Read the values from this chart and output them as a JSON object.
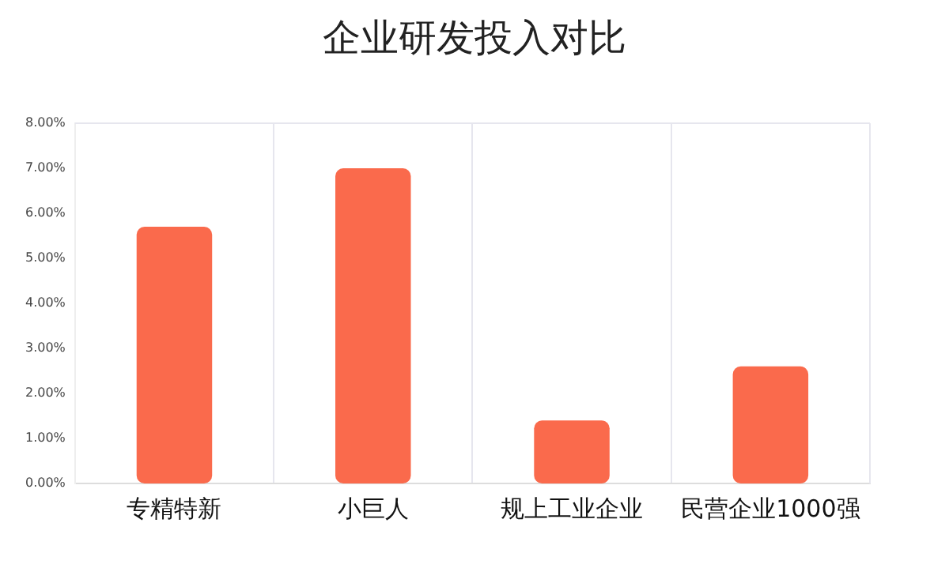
{
  "chart_data": {
    "type": "bar",
    "title": "企业研发投入对比",
    "categories": [
      "专精特新",
      "小巨人",
      "规上工业企业",
      "民营企业1000强"
    ],
    "values": [
      5.7,
      7.0,
      1.4,
      2.6
    ],
    "color": "#fa6a4c",
    "ylim": [
      0,
      8
    ],
    "yticks": [
      {
        "value": 0,
        "label": "0.00%"
      },
      {
        "value": 1,
        "label": "1.00%"
      },
      {
        "value": 2,
        "label": "2.00%"
      },
      {
        "value": 3,
        "label": "3.00%"
      },
      {
        "value": 4,
        "label": "4.00%"
      },
      {
        "value": 5,
        "label": "5.00%"
      },
      {
        "value": 6,
        "label": "6.00%"
      },
      {
        "value": 7,
        "label": "7.00%"
      },
      {
        "value": 8,
        "label": "8.00%"
      }
    ],
    "grid": "x",
    "legend": false
  }
}
